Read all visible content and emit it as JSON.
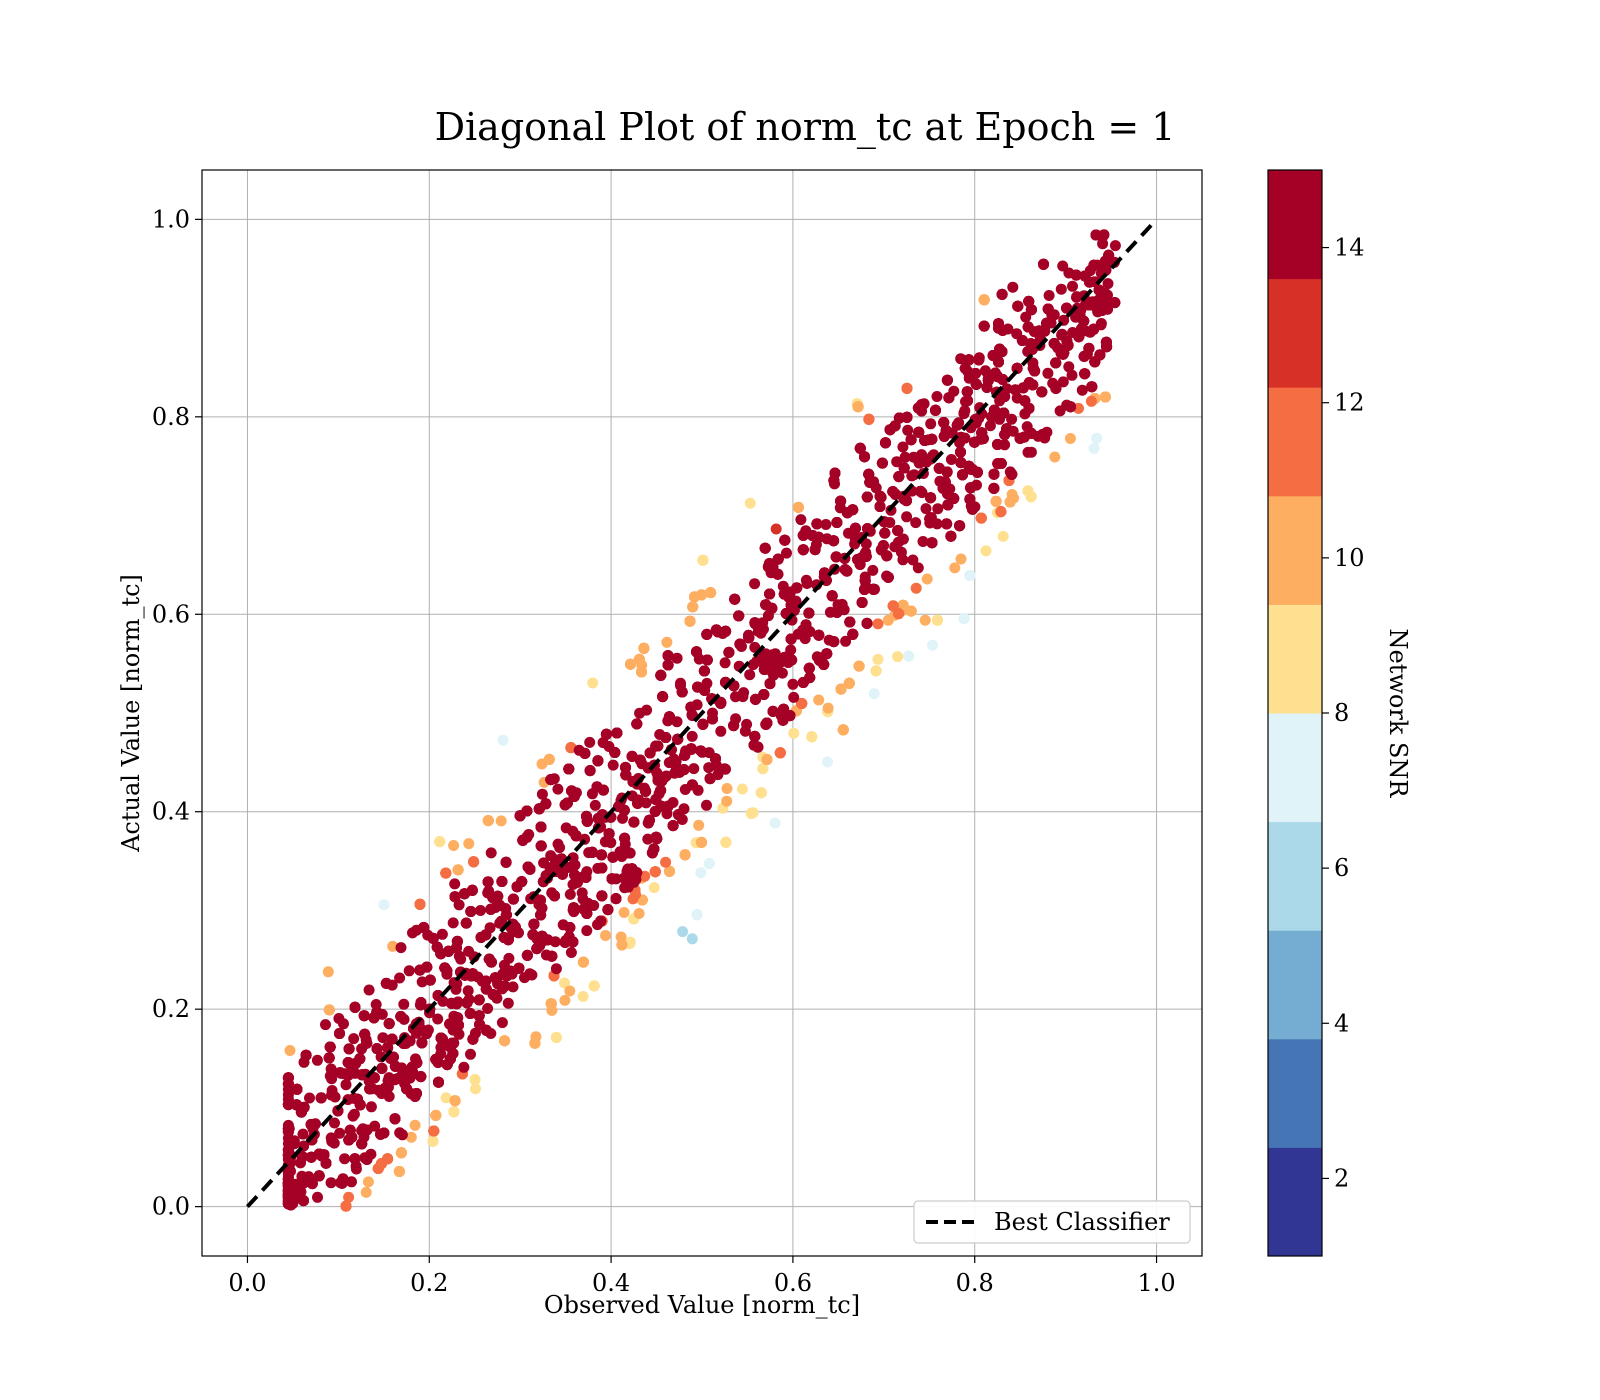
{
  "chart_data": {
    "type": "scatter",
    "title": "Diagonal Plot of norm_tc at Epoch = 1",
    "xlabel": "Observed Value [norm_tc]",
    "ylabel": "Actual Value [norm_tc]",
    "xlim": [
      -0.05,
      1.05
    ],
    "ylim": [
      -0.05,
      1.05
    ],
    "x_ticks": [
      "0.0",
      "0.2",
      "0.4",
      "0.6",
      "0.8",
      "1.0"
    ],
    "y_ticks": [
      "0.0",
      "0.2",
      "0.4",
      "0.6",
      "0.8",
      "1.0"
    ],
    "grid": true,
    "reference_line": {
      "name": "Best Classifier",
      "x": [
        0,
        1
      ],
      "y": [
        0,
        1
      ],
      "color": "#000000",
      "style": "dashed"
    },
    "legend": {
      "position": "lower-right",
      "entries": [
        "Best Classifier"
      ]
    },
    "colorbar": {
      "label": "Network SNR",
      "range": [
        1,
        15
      ],
      "ticks": [
        "2",
        "4",
        "6",
        "8",
        "10",
        "12",
        "14"
      ],
      "colors": [
        "#313695",
        "#4575b4",
        "#74add1",
        "#abd9e9",
        "#e0f3f8",
        "#fee090",
        "#fdae61",
        "#f46d43",
        "#d73027",
        "#a50026"
      ]
    },
    "distribution": {
      "description_free": true,
      "band_slope": 1,
      "obs_range": [
        0.04,
        0.96
      ],
      "actual_range": [
        0.0,
        1.0
      ]
    }
  }
}
